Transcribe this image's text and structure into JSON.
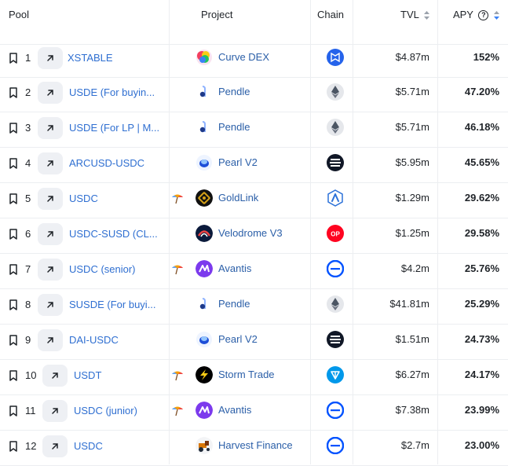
{
  "header": {
    "pool": "Pool",
    "project": "Project",
    "chain": "Chain",
    "tvl": "TVL",
    "apy": "APY",
    "apy_help_glyph": "?"
  },
  "colors": {
    "link": "#2f6fd1",
    "project_link": "#2b5fa8",
    "divider": "#eceef1",
    "button_bg": "#eef0f4",
    "sort_active": "#3b82f6"
  },
  "rows": [
    {
      "rank": "1",
      "pool": "XSTABLE",
      "rewards": false,
      "project": "Curve DEX",
      "project_logo": "curve-logo-icon",
      "chain": "megaeth-chain-icon",
      "tvl": "$4.87m",
      "apy": "152%"
    },
    {
      "rank": "2",
      "pool": "USDE (For buyin...",
      "rewards": false,
      "project": "Pendle",
      "project_logo": "pendle-logo-icon",
      "chain": "ethereum-chain-icon",
      "tvl": "$5.71m",
      "apy": "47.20%"
    },
    {
      "rank": "3",
      "pool": "USDE (For LP | M...",
      "rewards": false,
      "project": "Pendle",
      "project_logo": "pendle-logo-icon",
      "chain": "ethereum-chain-icon",
      "tvl": "$5.71m",
      "apy": "46.18%"
    },
    {
      "rank": "4",
      "pool": "ARCUSD-USDC",
      "rewards": false,
      "project": "Pearl V2",
      "project_logo": "pearl-logo-icon",
      "chain": "real-chain-icon",
      "tvl": "$5.95m",
      "apy": "45.65%"
    },
    {
      "rank": "5",
      "pool": "USDC",
      "rewards": true,
      "project": "GoldLink",
      "project_logo": "goldlink-logo-icon",
      "chain": "arbitrum-chain-icon",
      "tvl": "$1.29m",
      "apy": "29.62%"
    },
    {
      "rank": "6",
      "pool": "USDC-SUSD (CL...",
      "rewards": false,
      "project": "Velodrome V3",
      "project_logo": "velodrome-logo-icon",
      "chain": "optimism-chain-icon",
      "tvl": "$1.25m",
      "apy": "29.58%"
    },
    {
      "rank": "7",
      "pool": "USDC (senior)",
      "rewards": true,
      "project": "Avantis",
      "project_logo": "avantis-logo-icon",
      "chain": "base-chain-icon",
      "tvl": "$4.2m",
      "apy": "25.76%"
    },
    {
      "rank": "8",
      "pool": "SUSDE (For buyi...",
      "rewards": false,
      "project": "Pendle",
      "project_logo": "pendle-logo-icon",
      "chain": "ethereum-chain-icon",
      "tvl": "$41.81m",
      "apy": "25.29%"
    },
    {
      "rank": "9",
      "pool": "DAI-USDC",
      "rewards": false,
      "project": "Pearl V2",
      "project_logo": "pearl-logo-icon",
      "chain": "real-chain-icon",
      "tvl": "$1.51m",
      "apy": "24.73%"
    },
    {
      "rank": "10",
      "pool": "USDT",
      "rewards": true,
      "project": "Storm Trade",
      "project_logo": "storm-logo-icon",
      "chain": "ton-chain-icon",
      "tvl": "$6.27m",
      "apy": "24.17%"
    },
    {
      "rank": "11",
      "pool": "USDC (junior)",
      "rewards": true,
      "project": "Avantis",
      "project_logo": "avantis-logo-icon",
      "chain": "base-chain-icon",
      "tvl": "$7.38m",
      "apy": "23.99%"
    },
    {
      "rank": "12",
      "pool": "USDC",
      "rewards": false,
      "project": "Harvest Finance",
      "project_logo": "harvest-logo-icon",
      "chain": "base-chain-icon",
      "tvl": "$2.7m",
      "apy": "23.00%"
    }
  ]
}
